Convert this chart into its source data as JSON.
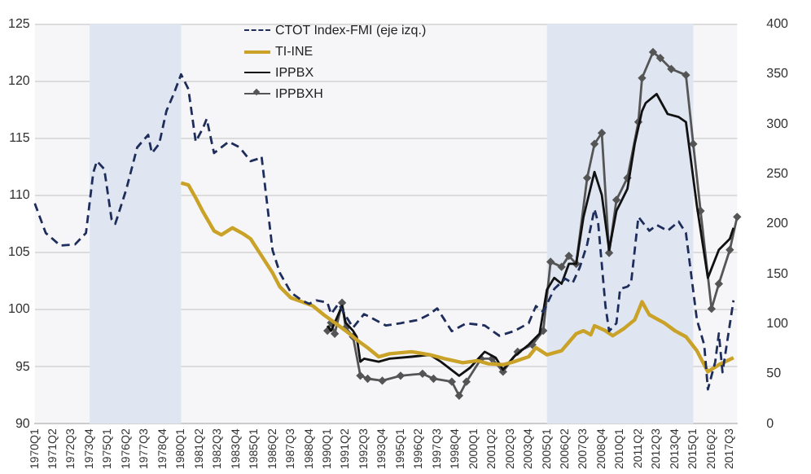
{
  "chart_data": {
    "type": "line",
    "legend": "top",
    "grid": "y",
    "categories": [
      "1970Q1",
      null,
      null,
      null,
      null,
      "1971Q2",
      null,
      null,
      null,
      null,
      "1972Q3",
      null,
      null,
      null,
      null,
      "1973Q4",
      null,
      null,
      null,
      null,
      "1975Q1",
      null,
      null,
      null,
      null,
      "1976Q2",
      null,
      null,
      null,
      null,
      "1977Q3",
      null,
      null,
      null,
      null,
      "1978Q4",
      null,
      null,
      null,
      null,
      "1980Q1",
      null,
      null,
      null,
      null,
      "1981Q2",
      null,
      null,
      null,
      null,
      "1982Q3",
      null,
      null,
      null,
      null,
      "1983Q4",
      null,
      null,
      null,
      null,
      "1985Q1",
      null,
      null,
      null,
      null,
      "1986Q2",
      null,
      null,
      null,
      null,
      "1987Q3",
      null,
      null,
      null,
      null,
      "1988Q4",
      null,
      null,
      null,
      null,
      "1990Q1",
      null,
      null,
      null,
      null,
      "1991Q2",
      null,
      null,
      null,
      null,
      "1992Q3",
      null,
      null,
      null,
      null,
      "1993Q4",
      null,
      null,
      null,
      null,
      "1995Q1",
      null,
      null,
      null,
      null,
      "1996Q2",
      null,
      null,
      null,
      null,
      "1997Q3",
      null,
      null,
      null,
      null,
      "1998Q4",
      null,
      null,
      null,
      null,
      "2000Q1",
      null,
      null,
      null,
      null,
      "2001Q2",
      null,
      null,
      null,
      null,
      "2002Q3",
      null,
      null,
      null,
      null,
      "2003Q4",
      null,
      null,
      null,
      null,
      "2005Q1",
      null,
      null,
      null,
      null,
      "2006Q2",
      null,
      null,
      null,
      null,
      "2007Q3",
      null,
      null,
      null,
      null,
      "2008Q4",
      null,
      null,
      null,
      null,
      "2010Q1",
      null,
      null,
      null,
      null,
      "2011Q2",
      null,
      null,
      null,
      null,
      "2012Q3",
      null,
      null,
      null,
      null,
      "2013Q4",
      null,
      null,
      null,
      null,
      "2015Q1",
      null,
      null,
      null,
      null,
      "2016Q2",
      null,
      null,
      null,
      null,
      "2017Q3",
      null,
      null
    ],
    "ylim": [
      90,
      125
    ],
    "yticks": [
      90,
      95,
      100,
      105,
      110,
      115,
      120,
      125
    ],
    "y2lim": [
      0,
      400
    ],
    "y2ticks": [
      0,
      50,
      100,
      150,
      200,
      250,
      300,
      350,
      400
    ],
    "bands": [
      {
        "axis": "x",
        "from": "1973Q4",
        "to": "1980Q1",
        "color": "#dfe6f2"
      },
      {
        "axis": "x",
        "from": "2005Q1",
        "to": "2015Q1",
        "color": "#dfe6f2"
      }
    ],
    "series": [
      {
        "name": "CTOT Index-FMI (eje izq.)",
        "color": "#1f2d5a",
        "line_style": "dashed",
        "values": [
          109.3,
          null,
          null,
          106.7,
          null,
          null,
          null,
          105.6,
          null,
          null,
          null,
          105.7,
          null,
          null,
          106.7,
          null,
          112,
          113,
          null,
          112.3,
          null,
          107.9,
          107.5,
          null,
          null,
          110.5,
          null,
          null,
          114.2,
          null,
          null,
          115.3,
          113.7,
          null,
          114.5,
          null,
          117.4,
          null,
          118.9,
          null,
          120.6,
          null,
          119.3,
          null,
          114.7,
          null,
          115.9,
          116.7,
          null,
          113.7,
          null,
          null,
          null,
          114.7,
          null,
          null,
          114.2,
          null,
          null,
          113,
          null,
          113.2,
          113.4,
          null,
          null,
          105.2,
          null,
          103.2,
          null,
          null,
          101.5,
          null,
          null,
          100.8,
          null,
          100.5,
          null,
          100.8,
          null,
          null,
          100.6,
          99.6,
          null,
          100.5,
          null,
          null,
          null,
          98.4,
          null,
          null,
          99.6,
          null,
          null,
          null,
          null,
          null,
          98.6,
          null,
          null,
          null,
          98.8,
          null,
          null,
          null,
          null,
          99.1,
          null,
          null,
          99.6,
          null,
          100.1,
          null,
          99.1,
          null,
          98.1,
          null,
          null,
          null,
          98.8,
          null,
          null,
          null,
          null,
          98.6,
          null,
          null,
          null,
          97.7,
          null,
          null,
          null,
          98.1,
          null,
          null,
          null,
          98.8,
          null,
          100.3,
          null,
          99.8,
          null,
          null,
          101.8,
          null,
          null,
          102.7,
          null,
          102.3,
          null,
          103.7,
          null,
          105.7,
          null,
          108.8,
          107.6,
          null,
          100.3,
          98.1,
          null,
          98.8,
          101.8,
          null,
          102,
          102.3,
          null,
          108.1,
          null,
          null,
          106.9,
          null,
          107.4,
          null,
          null,
          106.9,
          null,
          null,
          107.7,
          null,
          106.7,
          null,
          null,
          99.1,
          null,
          96.9,
          93,
          null,
          95.4,
          97.9,
          94.5,
          null,
          null,
          100.8,
          null
        ]
      },
      {
        "name": "TI-INE",
        "color": "#c9a227",
        "axis": "y2",
        "values": [
          null,
          null,
          null,
          null,
          null,
          null,
          null,
          null,
          null,
          null,
          null,
          null,
          null,
          null,
          null,
          null,
          null,
          null,
          null,
          null,
          null,
          null,
          null,
          null,
          null,
          null,
          null,
          null,
          null,
          null,
          null,
          null,
          null,
          null,
          null,
          null,
          null,
          null,
          null,
          null,
          241,
          null,
          239,
          null,
          226,
          null,
          212,
          null,
          null,
          193,
          null,
          189,
          null,
          null,
          196,
          null,
          null,
          190,
          null,
          185,
          null,
          null,
          168,
          null,
          null,
          151,
          null,
          137,
          null,
          null,
          126,
          null,
          null,
          122,
          null,
          null,
          118,
          null,
          null,
          109,
          null,
          null,
          101,
          null,
          null,
          93,
          null,
          null,
          84,
          null,
          null,
          76,
          null,
          null,
          67,
          null,
          null,
          70,
          null,
          null,
          null,
          null,
          null,
          72,
          null,
          null,
          null,
          null,
          69,
          null,
          null,
          null,
          65,
          null,
          null,
          null,
          null,
          61,
          null,
          null,
          null,
          63,
          null,
          null,
          60,
          null,
          null,
          null,
          59,
          null,
          null,
          62,
          null,
          null,
          null,
          67,
          null,
          76,
          null,
          null,
          69,
          null,
          null,
          null,
          73,
          null,
          null,
          null,
          90,
          null,
          93,
          null,
          89,
          98,
          null,
          null,
          93,
          null,
          88,
          null,
          null,
          95,
          null,
          null,
          104,
          null,
          122,
          null,
          109,
          null,
          null,
          null,
          101,
          null,
          null,
          93,
          null,
          null,
          87,
          null,
          null,
          73,
          null,
          null,
          52,
          null,
          null,
          59,
          null,
          null,
          null,
          66,
          null
        ]
      },
      {
        "name": "IPPBX",
        "color": "#111111",
        "axis": "y2",
        "values": [
          null,
          null,
          null,
          null,
          null,
          null,
          null,
          null,
          null,
          null,
          null,
          null,
          null,
          null,
          null,
          null,
          null,
          null,
          null,
          null,
          null,
          null,
          null,
          null,
          null,
          null,
          null,
          null,
          null,
          null,
          null,
          null,
          null,
          null,
          null,
          null,
          null,
          null,
          null,
          null,
          null,
          null,
          null,
          null,
          null,
          null,
          null,
          null,
          null,
          null,
          null,
          null,
          null,
          null,
          null,
          null,
          null,
          null,
          null,
          null,
          null,
          null,
          null,
          null,
          null,
          null,
          null,
          null,
          null,
          null,
          null,
          null,
          null,
          null,
          null,
          null,
          null,
          null,
          null,
          null,
          98,
          93,
          101,
          null,
          118,
          101,
          null,
          93,
          87,
          62,
          65,
          null,
          null,
          null,
          62,
          null,
          null,
          65,
          null,
          null,
          null,
          null,
          null,
          67,
          null,
          null,
          null,
          null,
          69,
          null,
          null,
          62,
          null,
          null,
          null,
          null,
          48,
          null,
          null,
          56,
          null,
          null,
          null,
          72,
          null,
          null,
          66,
          null,
          54,
          null,
          null,
          67,
          null,
          null,
          null,
          79,
          null,
          null,
          90,
          null,
          134,
          null,
          146,
          null,
          140,
          null,
          160,
          null,
          160,
          null,
          207,
          null,
          null,
          252,
          null,
          229,
          null,
          174,
          null,
          213,
          null,
          null,
          235,
          null,
          280,
          null,
          313,
          321,
          null,
          null,
          330,
          null,
          null,
          310,
          null,
          null,
          307,
          null,
          302,
          null,
          null,
          218,
          null,
          null,
          146,
          null,
          null,
          174,
          null,
          null,
          185,
          196,
          null
        ]
      },
      {
        "name": "IPPBXH",
        "color": "#555555",
        "axis": "y2",
        "marker": "diamond",
        "values": [
          null,
          null,
          null,
          null,
          null,
          null,
          null,
          null,
          null,
          null,
          null,
          null,
          null,
          null,
          null,
          null,
          null,
          null,
          null,
          null,
          null,
          null,
          null,
          null,
          null,
          null,
          null,
          null,
          null,
          null,
          null,
          null,
          null,
          null,
          null,
          null,
          null,
          null,
          null,
          null,
          null,
          null,
          null,
          null,
          null,
          null,
          null,
          null,
          null,
          null,
          null,
          null,
          null,
          null,
          null,
          null,
          null,
          null,
          null,
          null,
          null,
          null,
          null,
          null,
          null,
          null,
          null,
          null,
          null,
          null,
          null,
          null,
          null,
          null,
          null,
          null,
          null,
          null,
          null,
          null,
          93,
          101,
          90,
          null,
          121,
          96,
          null,
          87,
          null,
          48,
          null,
          45,
          null,
          null,
          null,
          43,
          null,
          null,
          null,
          null,
          48,
          null,
          null,
          null,
          null,
          null,
          50,
          null,
          null,
          45,
          null,
          null,
          null,
          null,
          42,
          null,
          28,
          null,
          42,
          null,
          null,
          null,
          65,
          null,
          null,
          65,
          null,
          null,
          52,
          null,
          null,
          null,
          72,
          null,
          null,
          null,
          79,
          null,
          null,
          93,
          null,
          162,
          null,
          null,
          157,
          null,
          168,
          null,
          160,
          null,
          null,
          246,
          null,
          280,
          null,
          291,
          null,
          171,
          null,
          224,
          null,
          null,
          246,
          null,
          null,
          302,
          346,
          null,
          null,
          372,
          null,
          366,
          null,
          null,
          355,
          null,
          null,
          null,
          349,
          null,
          280,
          null,
          213,
          null,
          null,
          115,
          null,
          140,
          null,
          null,
          174,
          null,
          207
        ]
      }
    ]
  }
}
